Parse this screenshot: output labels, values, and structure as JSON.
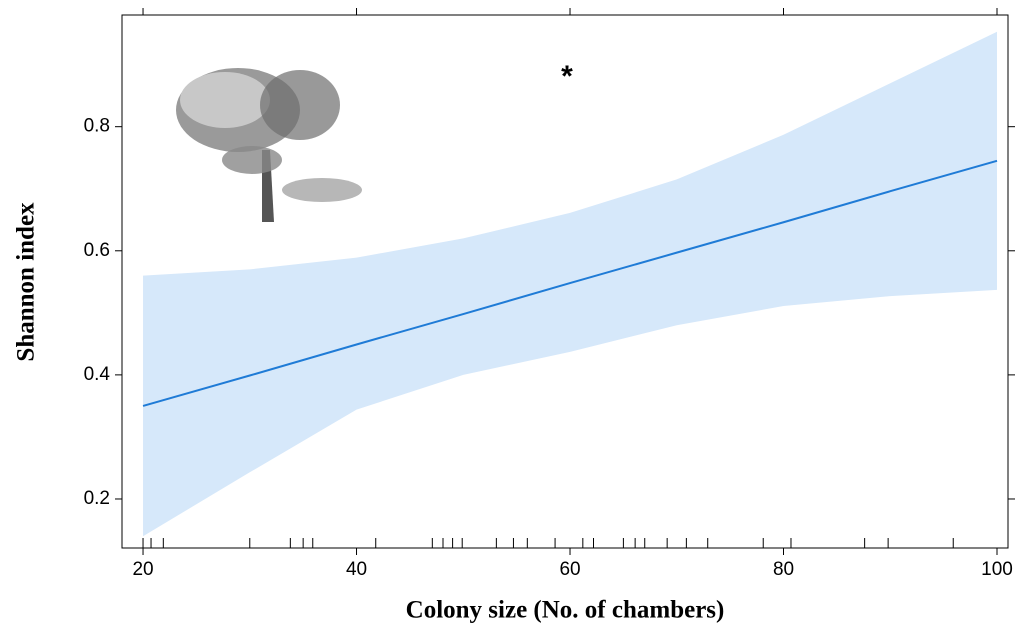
{
  "chart_data": {
    "type": "line",
    "xlabel": "Colony size (No. of chambers)",
    "ylabel": "Shannon index",
    "annotation": "*",
    "x": [
      20,
      30,
      40,
      50,
      60,
      70,
      80,
      90,
      100
    ],
    "series": [
      {
        "color": "#1f7bd6",
        "band_color": "#d6e8fa",
        "values": [
          0.35,
          0.399,
          0.449,
          0.498,
          0.548,
          0.597,
          0.646,
          0.696,
          0.745
        ],
        "upper": [
          0.56,
          0.57,
          0.589,
          0.62,
          0.661,
          0.715,
          0.787,
          0.87,
          0.953
        ],
        "lower": [
          0.14,
          0.243,
          0.344,
          0.4,
          0.437,
          0.48,
          0.511,
          0.527,
          0.537
        ]
      }
    ],
    "rug": [
      20,
      20.75,
      21.9,
      30,
      33.8,
      35,
      35.9,
      41.8,
      47.1,
      48.1,
      49,
      49.9,
      53.1,
      54.7,
      56,
      58.6,
      61.2,
      62.2,
      65,
      66.1,
      67,
      69.1,
      70.9,
      72.9,
      78.1,
      80.7,
      87.6,
      89.8,
      95.9
    ],
    "xlim": [
      18.03,
      101.03
    ],
    "ylim": [
      0.121,
      0.98
    ],
    "xticks": [
      20,
      40,
      60,
      80,
      100
    ],
    "yticks": [
      0.2,
      0.4,
      0.6,
      0.8
    ]
  }
}
